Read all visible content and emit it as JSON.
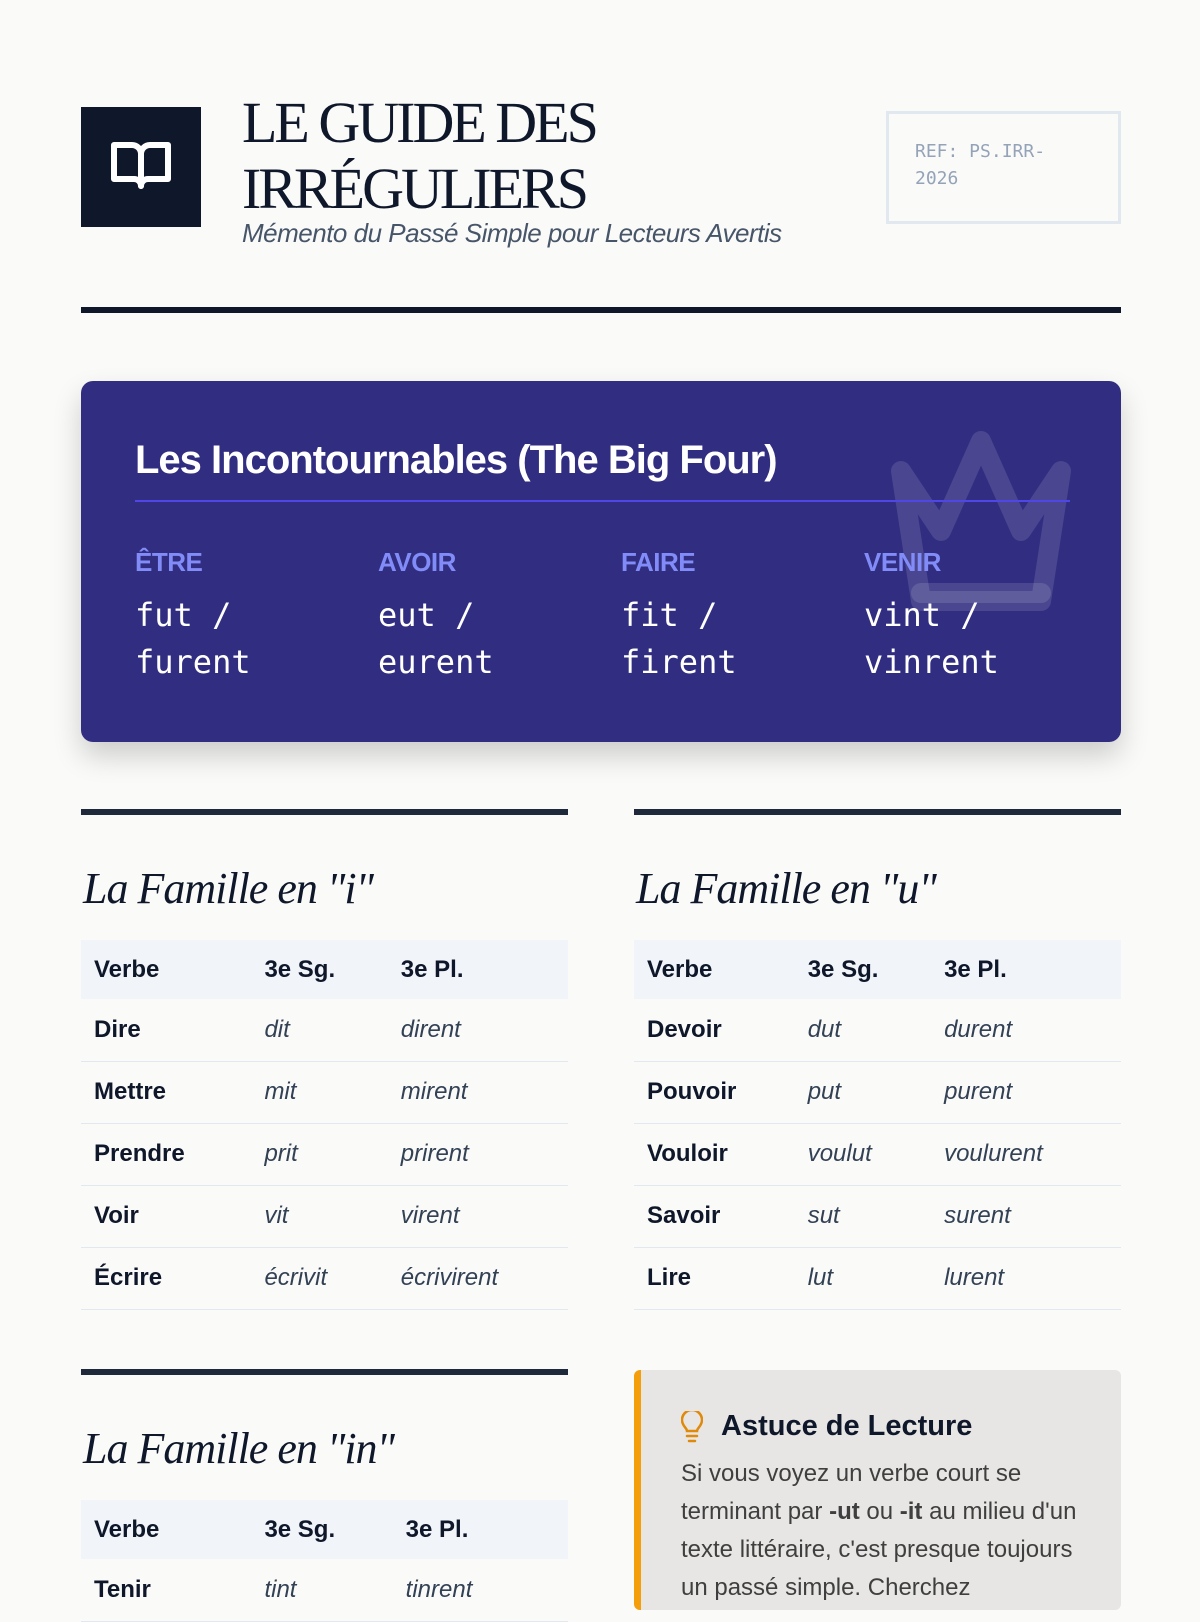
{
  "header": {
    "logo_icon": "open-book-icon",
    "title_line1": "LE GUIDE DES",
    "title_line2": "IRRÉGULIERS",
    "subtitle": "Mémento du Passé Simple pour Lecteurs Avertis",
    "ref_line1": "REF: PS.IRR-",
    "ref_line2": "2026"
  },
  "big_four": {
    "title": "Les Incontournables (The Big Four)",
    "watermark_icon": "crown-icon",
    "verbs": [
      {
        "verb": "ÊTRE",
        "forms1": "fut /",
        "forms2": "furent"
      },
      {
        "verb": "AVOIR",
        "forms1": "eut /",
        "forms2": "eurent"
      },
      {
        "verb": "FAIRE",
        "forms1": "fit /",
        "forms2": "firent"
      },
      {
        "verb": "VENIR",
        "forms1": "vint /",
        "forms2": "vinrent"
      }
    ]
  },
  "families": [
    {
      "title": "La Famille en \"i\"",
      "headers": [
        "Verbe",
        "3e Sg.",
        "3e Pl."
      ],
      "rows": [
        [
          "Dire",
          "dit",
          "dirent"
        ],
        [
          "Mettre",
          "mit",
          "mirent"
        ],
        [
          "Prendre",
          "prit",
          "prirent"
        ],
        [
          "Voir",
          "vit",
          "virent"
        ],
        [
          "Écrire",
          "écrivit",
          "écrivirent"
        ]
      ]
    },
    {
      "title": "La Famille en \"u\"",
      "headers": [
        "Verbe",
        "3e Sg.",
        "3e Pl."
      ],
      "rows": [
        [
          "Devoir",
          "dut",
          "durent"
        ],
        [
          "Pouvoir",
          "put",
          "purent"
        ],
        [
          "Vouloir",
          "voulut",
          "voulurent"
        ],
        [
          "Savoir",
          "sut",
          "surent"
        ],
        [
          "Lire",
          "lut",
          "lurent"
        ]
      ]
    },
    {
      "title": "La Famille en \"in\"",
      "headers": [
        "Verbe",
        "3e Sg.",
        "3e Pl."
      ],
      "rows": [
        [
          "Tenir",
          "tint",
          "tinrent"
        ]
      ]
    }
  ],
  "tip": {
    "icon": "lightbulb-icon",
    "title": "Astuce de Lecture",
    "text_a": "Si vous voyez un verbe court se terminant par ",
    "b1": "-ut",
    "text_b": " ou ",
    "b2": "-it",
    "text_c": " au milieu d'un texte littéraire, c'est presque toujours un passé simple. Cherchez"
  },
  "colors": {
    "navy": "#0f172a",
    "indigo": "#312e81",
    "accent": "#818cf8",
    "tip_border": "#f59e0b"
  }
}
